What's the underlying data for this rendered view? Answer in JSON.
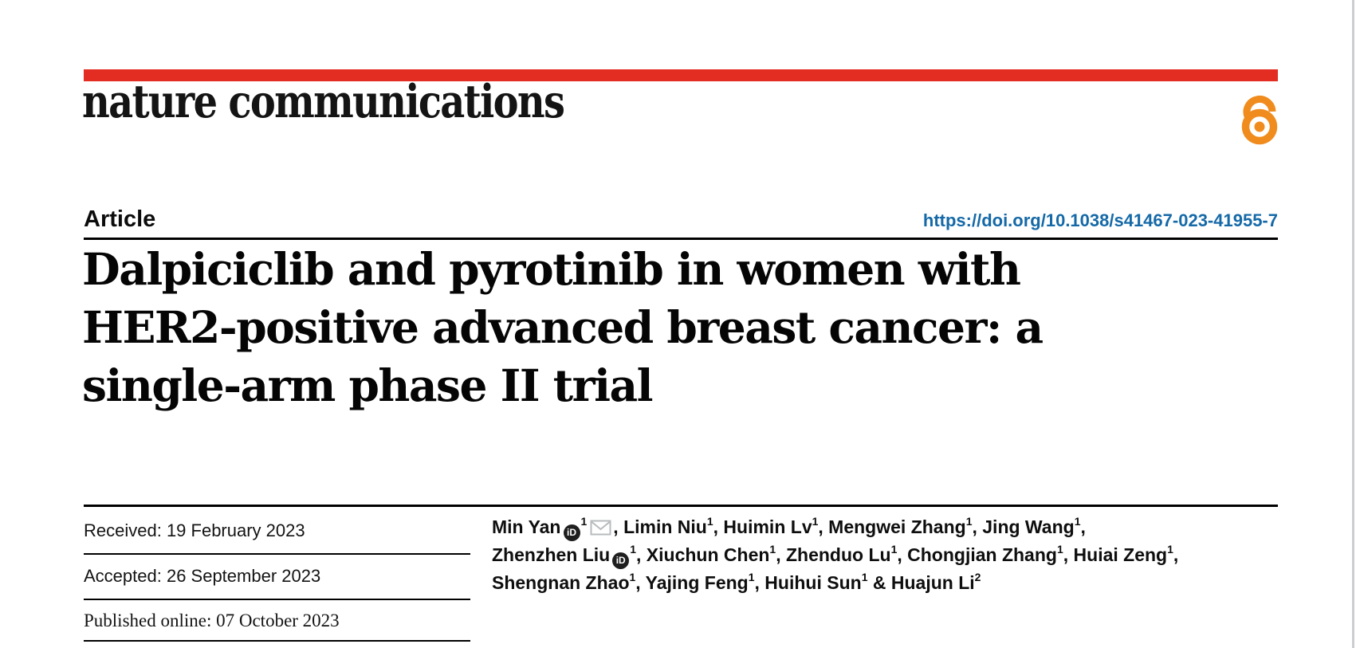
{
  "page": {
    "background_color": "#ffffff",
    "right_edge_color": "#cbced0"
  },
  "brand": {
    "logo_text": "nature communications",
    "bar_color": "#e32d22",
    "open_access_color": "#f08c1e",
    "open_access_icon": "open-access-lock"
  },
  "article_header": {
    "kicker": "Article",
    "doi_link": "https://doi.org/10.1038/s41467-023-41955-7",
    "doi_color": "#1569a7",
    "title_lines": [
      "Dalpiciclib and pyrotinib in women with",
      "HER2-positive advanced breast cancer: a",
      "single-arm phase II trial"
    ]
  },
  "dates": {
    "received": "Received: 19 February 2023",
    "accepted": "Accepted: 26 September 2023",
    "published": "Published online: 07 October 2023"
  },
  "authors": {
    "orcid_icon_label": "iD",
    "lines": [
      [
        {
          "t": "text",
          "v": "Min Yan"
        },
        {
          "t": "orcid"
        },
        {
          "t": "sup",
          "v": "1"
        },
        {
          "t": "envelope"
        },
        {
          "t": "text",
          "v": ", Limin Niu"
        },
        {
          "t": "sup",
          "v": "1"
        },
        {
          "t": "text",
          "v": ", Huimin Lv"
        },
        {
          "t": "sup",
          "v": "1"
        },
        {
          "t": "text",
          "v": ", Mengwei Zhang"
        },
        {
          "t": "sup",
          "v": "1"
        },
        {
          "t": "text",
          "v": ", Jing Wang"
        },
        {
          "t": "sup",
          "v": "1"
        },
        {
          "t": "text",
          "v": ","
        }
      ],
      [
        {
          "t": "text",
          "v": "Zhenzhen Liu"
        },
        {
          "t": "orcid"
        },
        {
          "t": "sup",
          "v": "1"
        },
        {
          "t": "text",
          "v": ", Xiuchun Chen"
        },
        {
          "t": "sup",
          "v": "1"
        },
        {
          "t": "text",
          "v": ", Zhenduo Lu"
        },
        {
          "t": "sup",
          "v": "1"
        },
        {
          "t": "text",
          "v": ", Chongjian Zhang"
        },
        {
          "t": "sup",
          "v": "1"
        },
        {
          "t": "text",
          "v": ", Huiai Zeng"
        },
        {
          "t": "sup",
          "v": "1"
        },
        {
          "t": "text",
          "v": ","
        }
      ],
      [
        {
          "t": "text",
          "v": "Shengnan Zhao"
        },
        {
          "t": "sup",
          "v": "1"
        },
        {
          "t": "text",
          "v": ", Yajing Feng"
        },
        {
          "t": "sup",
          "v": "1"
        },
        {
          "t": "text",
          "v": ", Huihui Sun"
        },
        {
          "t": "sup",
          "v": "1"
        },
        {
          "t": "text",
          "v": " & Huajun Li"
        },
        {
          "t": "sup",
          "v": "2"
        }
      ]
    ]
  }
}
